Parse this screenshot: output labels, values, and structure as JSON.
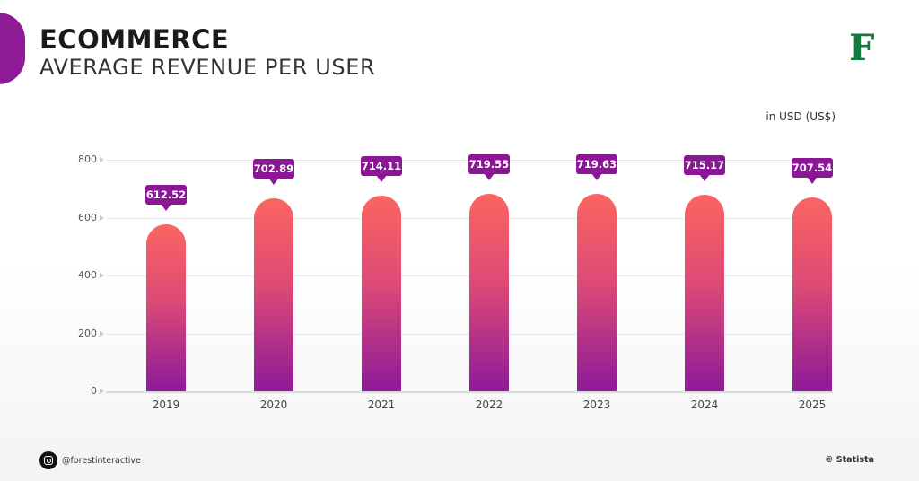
{
  "header": {
    "title": "ECOMMERCE",
    "subtitle": "AVERAGE REVENUE PER USER",
    "logo": "F"
  },
  "colors": {
    "accent_purple": "#8b1796",
    "bar_top": "#fb6560",
    "bar_bottom": "#8d1a98",
    "logo_green": "#157a3e"
  },
  "unit_label": "in USD (US$)",
  "chart_data": {
    "type": "bar",
    "title": "ECOMMERCE - AVERAGE REVENUE PER USER",
    "xlabel": "",
    "ylabel": "in USD (US$)",
    "categories": [
      "2019",
      "2020",
      "2021",
      "2022",
      "2023",
      "2024",
      "2025"
    ],
    "values": [
      612.52,
      702.89,
      714.11,
      719.55,
      719.63,
      715.17,
      707.54
    ],
    "value_labels": [
      "612.52",
      "702.89",
      "714.11",
      "719.55",
      "719.63",
      "715.17",
      "707.54"
    ],
    "yticks": [
      "0",
      "200",
      "400",
      "600",
      "800"
    ],
    "ylim": [
      0,
      800
    ],
    "grid": true,
    "legend": null
  },
  "footer": {
    "social_icon": "instagram-icon",
    "handle": "@forestinteractive",
    "source": "© Statista"
  }
}
